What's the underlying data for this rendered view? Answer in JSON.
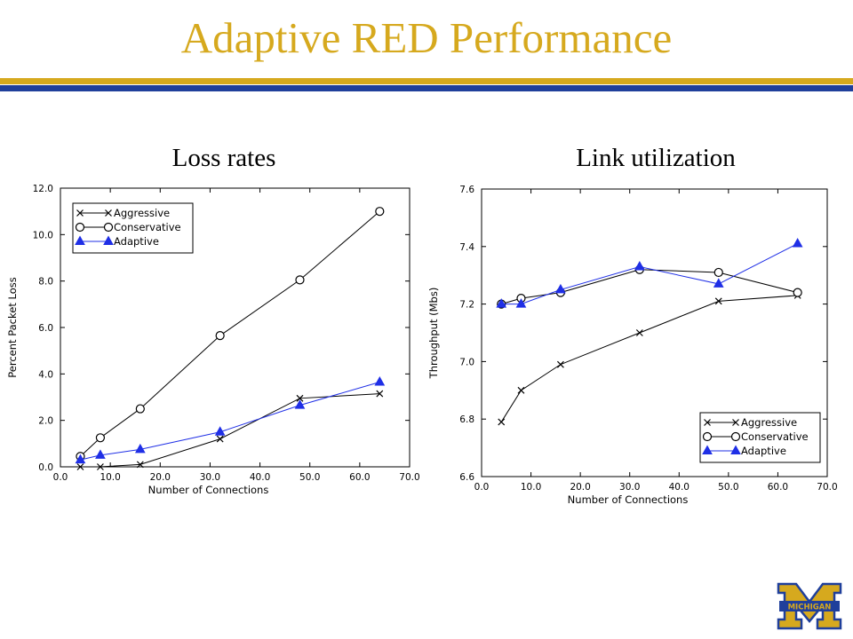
{
  "slide": {
    "title": "Adaptive RED Performance",
    "title_color": "#d6a91e",
    "rule_colors": [
      "#d6a91e",
      "#1f3f9b"
    ],
    "logo_text": "MICHIGAN",
    "logo_icon": "michigan-block-m-icon"
  },
  "chart_data": [
    {
      "type": "line",
      "heading": "Loss rates",
      "xlabel": "Number of Connections",
      "ylabel": "Percent Packet Loss",
      "xlim": [
        0,
        70
      ],
      "ylim": [
        0,
        12
      ],
      "xticks": [
        0,
        10,
        20,
        30,
        40,
        50,
        60,
        70
      ],
      "xtick_labels": [
        "0.0",
        "10.0",
        "20.0",
        "30.0",
        "40.0",
        "50.0",
        "60.0",
        "70.0"
      ],
      "yticks": [
        0,
        2,
        4,
        6,
        8,
        10,
        12
      ],
      "ytick_labels": [
        "0.0",
        "2.0",
        "4.0",
        "6.0",
        "8.0",
        "10.0",
        "12.0"
      ],
      "grid": false,
      "legend_position": "top-left",
      "series": [
        {
          "name": "Aggressive",
          "marker": "x",
          "color": "#000000",
          "x": [
            4,
            8,
            16,
            32,
            48,
            64
          ],
          "y": [
            0.0,
            0.0,
            0.1,
            1.2,
            2.95,
            3.15
          ]
        },
        {
          "name": "Conservative",
          "marker": "o",
          "color": "#000000",
          "x": [
            4,
            8,
            16,
            32,
            48,
            64
          ],
          "y": [
            0.45,
            1.25,
            2.5,
            5.65,
            8.05,
            11.0
          ]
        },
        {
          "name": "Adaptive",
          "marker": "^",
          "color": "#1f2fe6",
          "x": [
            4,
            8,
            16,
            32,
            48,
            64
          ],
          "y": [
            0.3,
            0.5,
            0.75,
            1.5,
            2.65,
            3.65
          ]
        }
      ]
    },
    {
      "type": "line",
      "heading": "Link utilization",
      "xlabel": "Number of Connections",
      "ylabel": "Throughput (Mbs)",
      "xlim": [
        0,
        70
      ],
      "ylim": [
        6.6,
        7.6
      ],
      "xticks": [
        0,
        10,
        20,
        30,
        40,
        50,
        60,
        70
      ],
      "xtick_labels": [
        "0.0",
        "10.0",
        "20.0",
        "30.0",
        "40.0",
        "50.0",
        "60.0",
        "70.0"
      ],
      "yticks": [
        6.6,
        6.8,
        7.0,
        7.2,
        7.4,
        7.6
      ],
      "ytick_labels": [
        "6.6",
        "6.8",
        "7.0",
        "7.2",
        "7.4",
        "7.6"
      ],
      "grid": false,
      "legend_position": "bottom-right",
      "series": [
        {
          "name": "Aggressive",
          "marker": "x",
          "color": "#000000",
          "x": [
            4,
            8,
            16,
            32,
            48,
            64
          ],
          "y": [
            6.79,
            6.9,
            6.99,
            7.1,
            7.21,
            7.23
          ]
        },
        {
          "name": "Conservative",
          "marker": "o",
          "color": "#000000",
          "x": [
            4,
            8,
            16,
            32,
            48,
            64
          ],
          "y": [
            7.2,
            7.22,
            7.24,
            7.32,
            7.31,
            7.24
          ]
        },
        {
          "name": "Adaptive",
          "marker": "^",
          "color": "#1f2fe6",
          "x": [
            4,
            8,
            16,
            32,
            48,
            64
          ],
          "y": [
            7.2,
            7.2,
            7.25,
            7.33,
            7.27,
            7.41
          ]
        }
      ]
    }
  ]
}
